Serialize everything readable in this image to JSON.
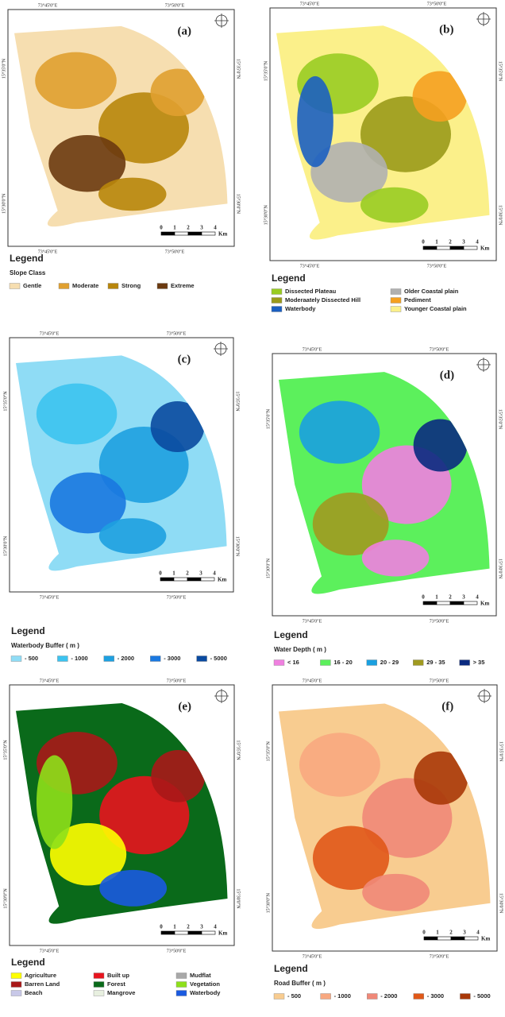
{
  "legend_heading": "Legend",
  "coords": {
    "lon": [
      "73°45'0\"E",
      "73°50'0\"E"
    ],
    "lat": [
      "15°35'0\"N",
      "15°30'0\"N"
    ]
  },
  "scale": {
    "ticks": [
      "0",
      "1",
      "2",
      "3",
      "4"
    ],
    "unit": "Km"
  },
  "panels": [
    {
      "label": "(a)",
      "legend_title": "Slope Class",
      "items": [
        {
          "label": "Gentle",
          "color": "#f6deb0"
        },
        {
          "label": "Moderate",
          "color": "#e0a030"
        },
        {
          "label": "Strong",
          "color": "#b8860b"
        },
        {
          "label": "Extreme",
          "color": "#6b3a10"
        }
      ]
    },
    {
      "label": "(b)",
      "legend_title": "",
      "items": [
        {
          "label": "Dissected Plateau",
          "color": "#99cc22"
        },
        {
          "label": "Older Coastal plain",
          "color": "#b0b0b0"
        },
        {
          "label": "Moderaately Dissected Hill",
          "color": "#9a9a1a"
        },
        {
          "label": "Pediment",
          "color": "#f5a020"
        },
        {
          "label": "Waterbody",
          "color": "#1b5fc1"
        },
        {
          "label": "Younger Coastal plain",
          "color": "#fbf08a"
        }
      ]
    },
    {
      "label": "(c)",
      "legend_title": "Waterbody Buffer ( m )",
      "items": [
        {
          "label": "- 500",
          "color": "#8fdcf5"
        },
        {
          "label": "- 1000",
          "color": "#3cc3f0"
        },
        {
          "label": "- 2000",
          "color": "#1ea0e0"
        },
        {
          "label": "- 3000",
          "color": "#1a78e0"
        },
        {
          "label": "- 5000",
          "color": "#0a4aa0"
        }
      ]
    },
    {
      "label": "(d)",
      "legend_title": "Water Depth ( m )",
      "items": [
        {
          "label": "< 16",
          "color": "#f080e0"
        },
        {
          "label": "16 - 20",
          "color": "#5cf05c"
        },
        {
          "label": "20 - 29",
          "color": "#1aa0e0"
        },
        {
          "label": "29 - 35",
          "color": "#a09a20"
        },
        {
          "label": "> 35",
          "color": "#0a2a80"
        }
      ]
    },
    {
      "label": "(e)",
      "legend_title": "",
      "items": [
        {
          "label": "Agriculture",
          "color": "#ffff00"
        },
        {
          "label": "Built up",
          "color": "#e8141e"
        },
        {
          "label": "Mudflat",
          "color": "#a8a8a8"
        },
        {
          "label": "Barren Land",
          "color": "#a81818"
        },
        {
          "label": "Forest",
          "color": "#0a6a1a"
        },
        {
          "label": "Vegetation",
          "color": "#8ee01a"
        },
        {
          "label": "Beach",
          "color": "#c8c8e8"
        },
        {
          "label": "Mangrove",
          "color": "#e8f0e0"
        },
        {
          "label": "Waterbody",
          "color": "#1a5ae0"
        }
      ]
    },
    {
      "label": "(f)",
      "legend_title": "Road Buffer ( m )",
      "items": [
        {
          "label": "- 500",
          "color": "#f8cc90"
        },
        {
          "label": "- 1000",
          "color": "#f8a880"
        },
        {
          "label": "- 2000",
          "color": "#f08878"
        },
        {
          "label": "- 3000",
          "color": "#e05818"
        },
        {
          "label": "- 5000",
          "color": "#a83808"
        }
      ]
    }
  ]
}
